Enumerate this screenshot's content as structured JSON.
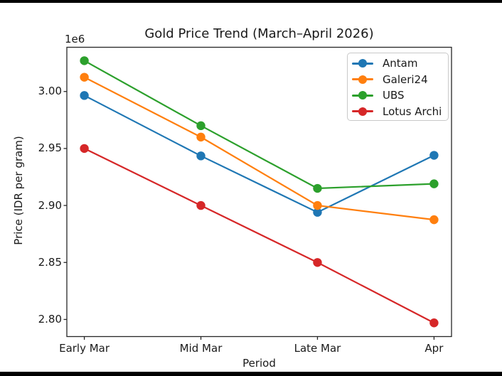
{
  "figure": {
    "background": "#ffffff",
    "letterbox_color": "#000000",
    "axis_color": "#262626",
    "text_color": "#1a1a1a",
    "legend_border_color": "#c9c9c9"
  },
  "chart_data": {
    "type": "line",
    "title": "Gold Price Trend (March–April 2026)",
    "xlabel": "Period",
    "ylabel": "Price (IDR per gram)",
    "y_offset_text": "1e6",
    "categories": [
      "Early Mar",
      "Mid Mar",
      "Late Mar",
      "Apr"
    ],
    "series": [
      {
        "name": "Antam",
        "color": "#1f77b4",
        "values": [
          2996500,
          2943500,
          2894000,
          2944000
        ]
      },
      {
        "name": "Galeri24",
        "color": "#ff7f0e",
        "values": [
          3012500,
          2960000,
          2900000,
          2887500
        ]
      },
      {
        "name": "UBS",
        "color": "#2ca02c",
        "values": [
          3027000,
          2970000,
          2915000,
          2919000
        ]
      },
      {
        "name": "Lotus Archi",
        "color": "#d62728",
        "values": [
          2950000,
          2900000,
          2850000,
          2797000
        ]
      }
    ],
    "marker": "o",
    "grid": false,
    "legend": {
      "position": "upper right",
      "entries": [
        "Antam",
        "Galeri24",
        "UBS",
        "Lotus Archi"
      ]
    },
    "yticks": {
      "values": [
        2800000,
        2850000,
        2900000,
        2950000,
        3000000
      ],
      "labels": [
        "2.80",
        "2.85",
        "2.90",
        "2.95",
        "3.00"
      ]
    },
    "ylim": [
      2785000,
      3038800
    ],
    "xlim": [
      -0.15,
      3.15
    ]
  }
}
